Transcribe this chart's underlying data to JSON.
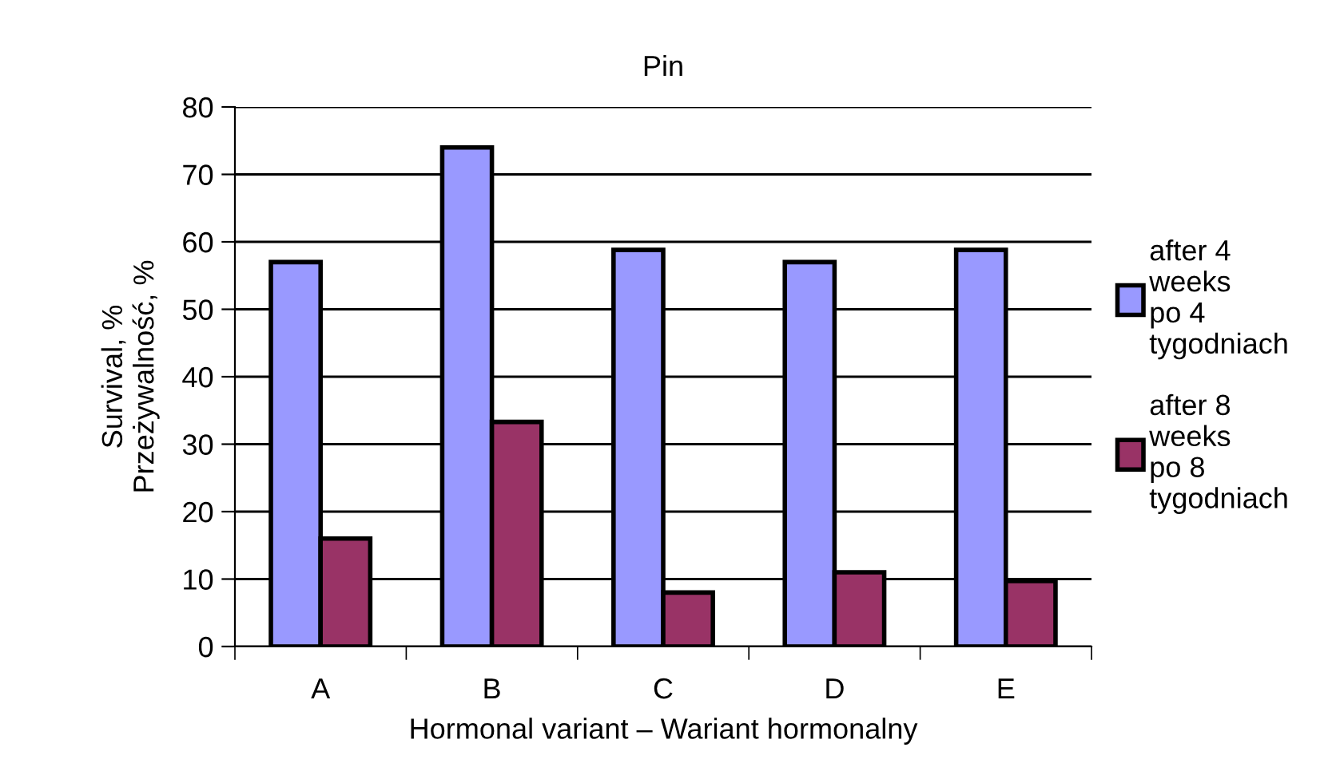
{
  "chart_data": {
    "type": "bar",
    "title": "Pin",
    "xlabel": "Hormonal variant – Wariant hormonalny",
    "ylabel": "Survival, %\nPrzeżywalność, %",
    "categories": [
      "A",
      "B",
      "C",
      "D",
      "E"
    ],
    "series": [
      {
        "name": "after 4\nweeks\npo 4\ntygodniach",
        "color": "#9999ff",
        "values": [
          57,
          74,
          58.8,
          57,
          58.8
        ]
      },
      {
        "name": "after 8\nweeks\npo 8\ntygodniach",
        "color": "#993366",
        "values": [
          16,
          33.3,
          8,
          11,
          9.7
        ]
      }
    ],
    "ylim": [
      0,
      80
    ],
    "yticks": [
      0,
      10,
      20,
      30,
      40,
      50,
      60,
      70,
      80
    ],
    "grid": "y",
    "legend": "right"
  }
}
